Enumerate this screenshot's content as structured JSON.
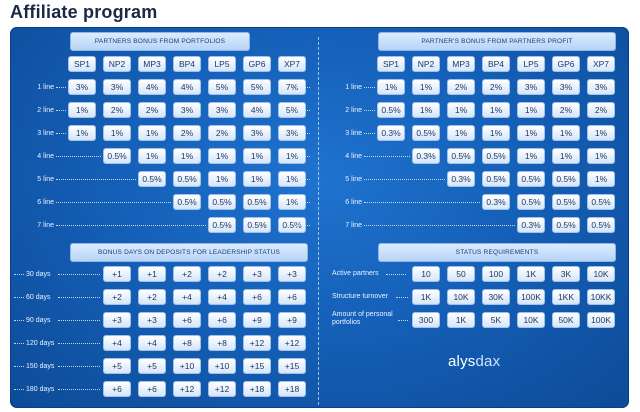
{
  "page": {
    "title": "Affiliate program"
  },
  "brand": {
    "logo_part1": "alys",
    "logo_part2": "dax"
  },
  "columns": [
    "SP1",
    "NP2",
    "MP3",
    "BP4",
    "LP5",
    "GP6",
    "XP7"
  ],
  "portfolio_bonus": {
    "title": "Partners bonus from portfolios",
    "lines": [
      {
        "label": "1 line",
        "values": [
          "3%",
          "3%",
          "4%",
          "4%",
          "5%",
          "5%",
          "7%"
        ]
      },
      {
        "label": "2 line",
        "values": [
          "1%",
          "2%",
          "2%",
          "3%",
          "3%",
          "4%",
          "5%"
        ]
      },
      {
        "label": "3 line",
        "values": [
          "1%",
          "1%",
          "1%",
          "2%",
          "2%",
          "3%",
          "3%"
        ]
      },
      {
        "label": "4 line",
        "values": [
          "",
          "0.5%",
          "1%",
          "1%",
          "1%",
          "1%",
          "1%"
        ]
      },
      {
        "label": "5 line",
        "values": [
          "",
          "",
          "0.5%",
          "0.5%",
          "1%",
          "1%",
          "1%"
        ]
      },
      {
        "label": "6 line",
        "values": [
          "",
          "",
          "",
          "0.5%",
          "0.5%",
          "0.5%",
          "1%"
        ]
      },
      {
        "label": "7 line",
        "values": [
          "",
          "",
          "",
          "",
          "0.5%",
          "0.5%",
          "0.5%"
        ]
      }
    ]
  },
  "profit_bonus": {
    "title": "Partner's bonus from partners profit",
    "lines": [
      {
        "label": "1 line",
        "values": [
          "1%",
          "1%",
          "2%",
          "2%",
          "3%",
          "3%",
          "3%"
        ]
      },
      {
        "label": "2 line",
        "values": [
          "0.5%",
          "1%",
          "1%",
          "1%",
          "1%",
          "2%",
          "2%"
        ]
      },
      {
        "label": "3 line",
        "values": [
          "0.3%",
          "0.5%",
          "1%",
          "1%",
          "1%",
          "1%",
          "1%"
        ]
      },
      {
        "label": "4 line",
        "values": [
          "",
          "0.3%",
          "0.5%",
          "0.5%",
          "1%",
          "1%",
          "1%"
        ]
      },
      {
        "label": "5 line",
        "values": [
          "",
          "",
          "0.3%",
          "0.5%",
          "0.5%",
          "0.5%",
          "1%"
        ]
      },
      {
        "label": "6 line",
        "values": [
          "",
          "",
          "",
          "0.3%",
          "0.5%",
          "0.5%",
          "0.5%"
        ]
      },
      {
        "label": "7 line",
        "values": [
          "",
          "",
          "",
          "",
          "0.3%",
          "0.5%",
          "0.5%"
        ]
      }
    ]
  },
  "bonus_days": {
    "title": "Bonus days on deposits for leadership status",
    "rows": [
      {
        "label": "30 days",
        "values": [
          "",
          "+1",
          "+1",
          "+2",
          "+2",
          "+3",
          "+3"
        ]
      },
      {
        "label": "60 days",
        "values": [
          "",
          "+2",
          "+2",
          "+4",
          "+4",
          "+6",
          "+6"
        ]
      },
      {
        "label": "90 days",
        "values": [
          "",
          "+3",
          "+3",
          "+6",
          "+6",
          "+9",
          "+9"
        ]
      },
      {
        "label": "120 days",
        "values": [
          "",
          "+4",
          "+4",
          "+8",
          "+8",
          "+12",
          "+12"
        ]
      },
      {
        "label": "150 days",
        "values": [
          "",
          "+5",
          "+5",
          "+10",
          "+10",
          "+15",
          "+15"
        ]
      },
      {
        "label": "180 days",
        "values": [
          "",
          "+6",
          "+6",
          "+12",
          "+12",
          "+18",
          "+18"
        ]
      }
    ]
  },
  "status_requirements": {
    "title": "Status requirements",
    "rows": [
      {
        "label": "Active partners",
        "values": [
          "10",
          "50",
          "100",
          "1K",
          "3K",
          "10K"
        ]
      },
      {
        "label": "Structure turnover",
        "values": [
          "1K",
          "10K",
          "30K",
          "100K",
          "1KK",
          "10KK"
        ]
      },
      {
        "label": "Amount of personal portfolios",
        "values": [
          "300",
          "1K",
          "5K",
          "10K",
          "50K",
          "100K"
        ]
      }
    ]
  }
}
